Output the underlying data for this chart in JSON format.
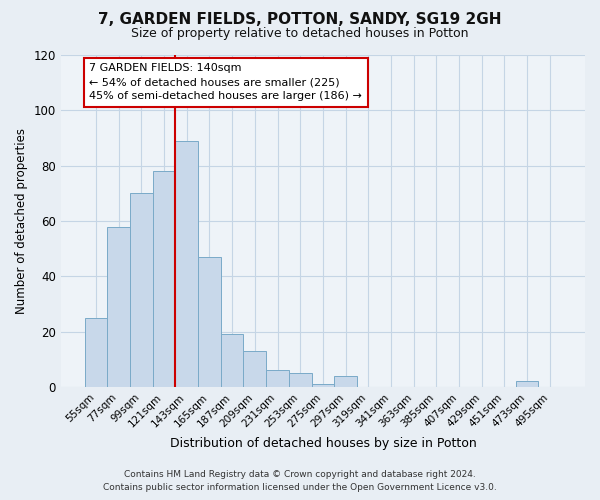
{
  "title": "7, GARDEN FIELDS, POTTON, SANDY, SG19 2GH",
  "subtitle": "Size of property relative to detached houses in Potton",
  "xlabel": "Distribution of detached houses by size in Potton",
  "ylabel": "Number of detached properties",
  "bin_labels": [
    "55sqm",
    "77sqm",
    "99sqm",
    "121sqm",
    "143sqm",
    "165sqm",
    "187sqm",
    "209sqm",
    "231sqm",
    "253sqm",
    "275sqm",
    "297sqm",
    "319sqm",
    "341sqm",
    "363sqm",
    "385sqm",
    "407sqm",
    "429sqm",
    "451sqm",
    "473sqm",
    "495sqm"
  ],
  "bar_heights": [
    25,
    58,
    70,
    78,
    89,
    47,
    19,
    13,
    6,
    5,
    1,
    4,
    0,
    0,
    0,
    0,
    0,
    0,
    0,
    2,
    0
  ],
  "bar_color": "#c8d8ea",
  "bar_edge_color": "#7aaac8",
  "vline_color": "#cc0000",
  "ylim": [
    0,
    120
  ],
  "yticks": [
    0,
    20,
    40,
    60,
    80,
    100,
    120
  ],
  "annotation_title": "7 GARDEN FIELDS: 140sqm",
  "annotation_line1": "← 54% of detached houses are smaller (225)",
  "annotation_line2": "45% of semi-detached houses are larger (186) →",
  "annotation_box_color": "#ffffff",
  "annotation_box_edge_color": "#cc0000",
  "footer_line1": "Contains HM Land Registry data © Crown copyright and database right 2024.",
  "footer_line2": "Contains public sector information licensed under the Open Government Licence v3.0.",
  "background_color": "#e8eef4",
  "plot_background_color": "#eef3f8",
  "grid_color": "#c5d5e5"
}
